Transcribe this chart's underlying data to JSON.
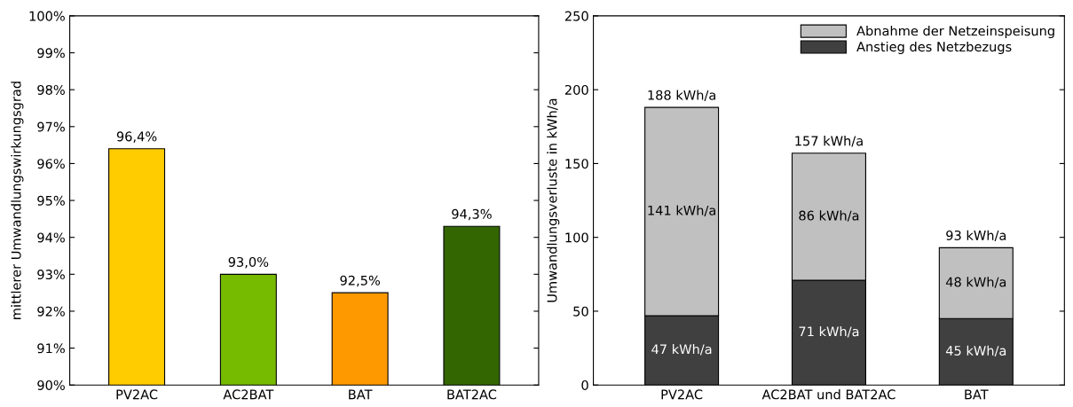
{
  "chart_data": [
    {
      "type": "bar",
      "categories": [
        "PV2AC",
        "AC2BAT",
        "BAT",
        "BAT2AC"
      ],
      "values": [
        96.4,
        93.0,
        92.5,
        94.3
      ],
      "colors": [
        "#ffcc00",
        "#77bb00",
        "#ff9900",
        "#336600"
      ],
      "value_labels": [
        "96,4%",
        "93,0%",
        "92,5%",
        "94,3%"
      ],
      "ylabel": "mittlerer Umwandlungswirkungsgrad",
      "ylim": [
        90,
        100
      ],
      "yticks": [
        {
          "value": 90,
          "label": "90%"
        },
        {
          "value": 91,
          "label": "91%"
        },
        {
          "value": 92,
          "label": "92%"
        },
        {
          "value": 93,
          "label": "93%"
        },
        {
          "value": 94,
          "label": "94%"
        },
        {
          "value": 95,
          "label": "95%"
        },
        {
          "value": 96,
          "label": "96%"
        },
        {
          "value": 97,
          "label": "97%"
        },
        {
          "value": 98,
          "label": "98%"
        },
        {
          "value": 99,
          "label": "99%"
        },
        {
          "value": 100,
          "label": "100%"
        }
      ]
    },
    {
      "type": "bar",
      "stacked": true,
      "categories": [
        "PV2AC",
        "AC2BAT und BAT2AC",
        "BAT"
      ],
      "series": [
        {
          "name": "Anstieg des Netzbezugs",
          "color": "#404040",
          "values": [
            47,
            71,
            45
          ],
          "value_labels": [
            "47 kWh/a",
            "71 kWh/a",
            "45 kWh/a"
          ]
        },
        {
          "name": "Abnahme der Netzeinspeisung",
          "color": "#c0c0c0",
          "values": [
            141,
            86,
            48
          ],
          "value_labels": [
            "141 kWh/a",
            "86 kWh/a",
            "48 kWh/a"
          ]
        }
      ],
      "totals": [
        "188 kWh/a",
        "157 kWh/a",
        "93 kWh/a"
      ],
      "ylabel": "Umwandlungsverluste in kWh/a",
      "ylim": [
        0,
        250
      ],
      "yticks": [
        0,
        50,
        100,
        150,
        200,
        250
      ],
      "legend": "top right"
    }
  ]
}
